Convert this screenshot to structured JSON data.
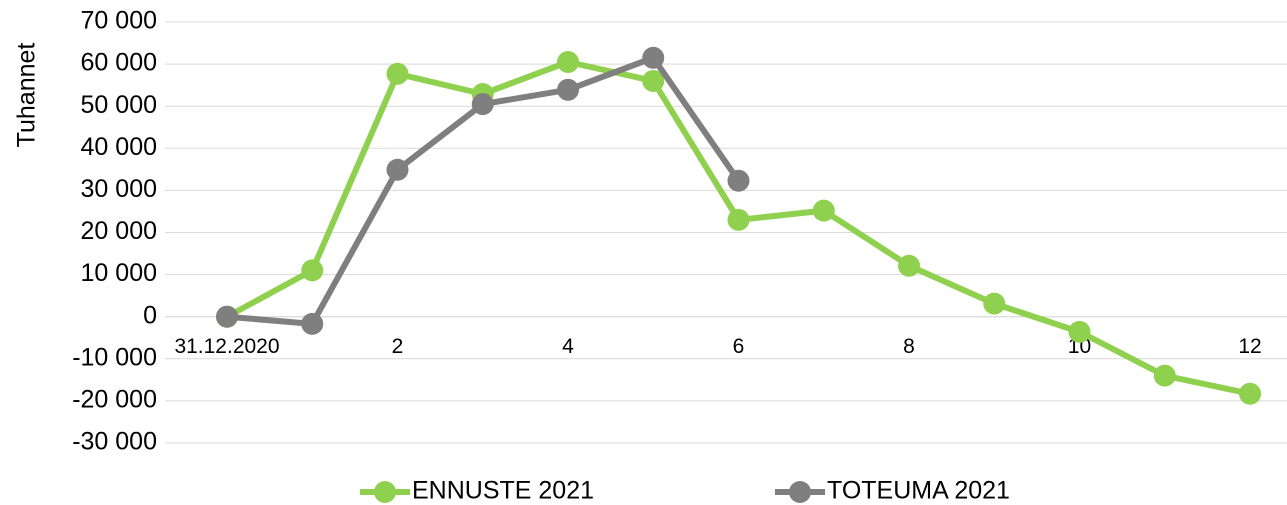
{
  "chart_data": {
    "type": "line",
    "y_label": "Tuhannet",
    "categories": [
      "31.12.2020",
      null,
      "2",
      null,
      "4",
      null,
      "6",
      null,
      "8",
      null,
      "10",
      null,
      "12"
    ],
    "series": [
      {
        "name": "ENNUSTE 2021",
        "color": "#8fd14f",
        "values": [
          0,
          11000,
          57700,
          52900,
          60500,
          56000,
          23000,
          25200,
          12100,
          3100,
          -3600,
          -14000,
          -18300
        ]
      },
      {
        "name": "TOTEUMA 2021",
        "color": "#7f7f7f",
        "values": [
          0,
          -1700,
          34900,
          50500,
          53900,
          61500,
          32300,
          null,
          null,
          null,
          null,
          null,
          null
        ]
      }
    ],
    "ylim": [
      -30000,
      70000
    ],
    "yticks": [
      {
        "value": -30000,
        "label": "-30 000"
      },
      {
        "value": -20000,
        "label": "-20 000"
      },
      {
        "value": -10000,
        "label": "-10 000"
      },
      0,
      {
        "value": 10000,
        "label": "10 000"
      },
      {
        "value": 20000,
        "label": "20 000"
      },
      {
        "value": 30000,
        "label": "30 000"
      },
      {
        "value": 40000,
        "label": "40 000"
      },
      {
        "value": 50000,
        "label": "50 000"
      },
      {
        "value": 60000,
        "label": "60 000"
      },
      {
        "value": 70000,
        "label": "70 000"
      }
    ],
    "grid": true,
    "legend": "bottom"
  }
}
